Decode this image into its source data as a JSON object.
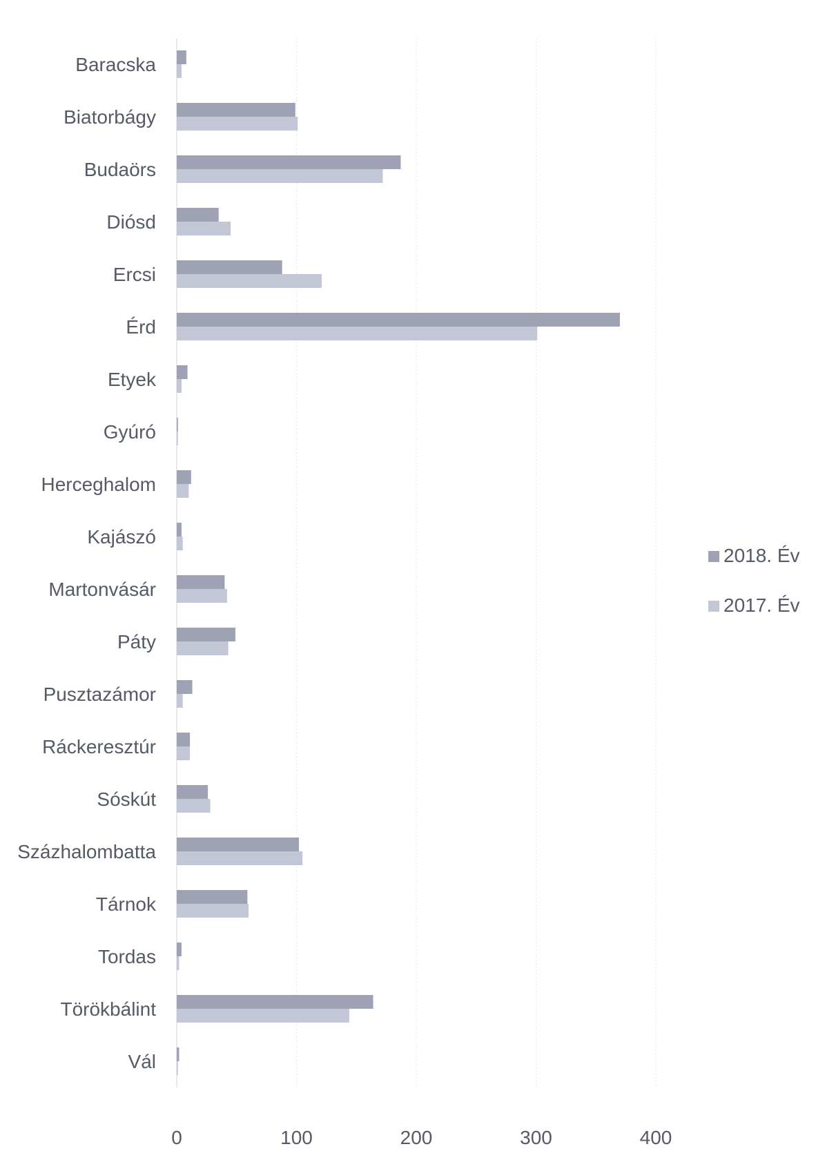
{
  "chart_data": {
    "type": "bar",
    "orientation": "horizontal",
    "categories": [
      "Baracska",
      "Biatorbágy",
      "Budaörs",
      "Diósd",
      "Ercsi",
      "Érd",
      "Etyek",
      "Gyúró",
      "Herceghalom",
      "Kajászó",
      "Martonvásár",
      "Páty",
      "Pusztazámor",
      "Ráckeresztúr",
      "Sóskút",
      "Százhalombatta",
      "Tárnok",
      "Tordas",
      "Törökbálint",
      "Vál"
    ],
    "series": [
      {
        "name": "2018. Év",
        "color": "#9ea2b4",
        "values": [
          8,
          99,
          187,
          35,
          88,
          370,
          9,
          1,
          12,
          4,
          40,
          49,
          13,
          11,
          26,
          102,
          59,
          4,
          164,
          2
        ]
      },
      {
        "name": "2017. Év",
        "color": "#c3c6d4",
        "values": [
          4,
          101,
          172,
          45,
          121,
          301,
          4,
          1,
          10,
          5,
          42,
          43,
          5,
          11,
          28,
          105,
          60,
          2,
          144,
          1
        ]
      }
    ],
    "xlim": [
      0,
      400
    ],
    "xticks": [
      0,
      100,
      200,
      300,
      400
    ],
    "grid": true,
    "legend_position": "right"
  }
}
